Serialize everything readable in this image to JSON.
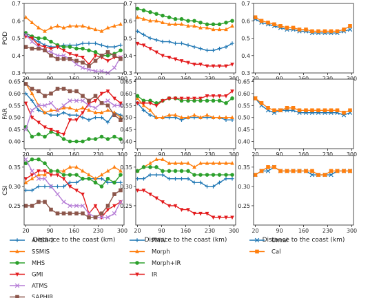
{
  "chart_data": [
    {
      "id": "pod1",
      "type": "line",
      "ylabel": "POD",
      "ylim": [
        0.3,
        0.7
      ],
      "yticks": [
        0.3,
        0.4,
        0.5,
        0.6,
        0.7
      ],
      "ytick_labels": [
        "0.3",
        "0.4",
        "0.5",
        "0.6",
        "0.7"
      ],
      "xlim": [
        15,
        305
      ],
      "series": [
        {
          "name": "AMSR-2",
          "values": [
            0.52,
            0.5,
            0.48,
            0.46,
            0.45,
            0.45,
            0.46,
            0.46,
            0.46,
            0.47,
            0.47,
            0.47,
            0.46,
            0.45,
            0.45,
            0.46
          ]
        },
        {
          "name": "SSMIS",
          "values": [
            0.62,
            0.59,
            0.56,
            0.54,
            0.56,
            0.57,
            0.56,
            0.57,
            0.57,
            0.57,
            0.56,
            0.55,
            0.54,
            0.56,
            0.57,
            0.58
          ]
        },
        {
          "name": "MHS",
          "values": [
            0.53,
            0.51,
            0.5,
            0.5,
            0.48,
            0.46,
            0.45,
            0.45,
            0.44,
            0.44,
            0.43,
            0.42,
            0.4,
            0.4,
            0.41,
            0.43
          ]
        },
        {
          "name": "GMI",
          "values": [
            0.51,
            0.5,
            0.46,
            0.45,
            0.44,
            0.45,
            0.43,
            0.41,
            0.4,
            0.39,
            0.35,
            0.4,
            0.39,
            0.37,
            0.39,
            0.39
          ]
        },
        {
          "name": "ATMS",
          "values": [
            0.52,
            0.48,
            0.45,
            0.43,
            0.42,
            0.4,
            0.4,
            0.38,
            0.35,
            0.33,
            0.32,
            0.31,
            0.31,
            0.3,
            0.33,
            0.39
          ]
        },
        {
          "name": "SAPHIR",
          "values": [
            0.45,
            0.44,
            0.44,
            0.43,
            0.4,
            0.38,
            0.38,
            0.38,
            0.37,
            0.36,
            0.34,
            0.37,
            0.4,
            0.42,
            0.4,
            0.38
          ]
        }
      ]
    },
    {
      "id": "pod2",
      "type": "line",
      "ylim": [
        0.3,
        0.7
      ],
      "yticks": [
        0.3,
        0.4,
        0.5,
        0.6,
        0.7
      ],
      "ytick_labels": [
        "0.3",
        "0.4",
        "0.5",
        "0.6",
        "0.7"
      ],
      "xlim": [
        15,
        305
      ],
      "series": [
        {
          "name": "PMW",
          "values": [
            0.54,
            0.52,
            0.5,
            0.49,
            0.48,
            0.48,
            0.47,
            0.47,
            0.46,
            0.45,
            0.44,
            0.43,
            0.43,
            0.44,
            0.45,
            0.47
          ]
        },
        {
          "name": "Morph",
          "values": [
            0.62,
            0.61,
            0.6,
            0.6,
            0.59,
            0.58,
            0.58,
            0.58,
            0.57,
            0.57,
            0.56,
            0.56,
            0.55,
            0.55,
            0.55,
            0.57
          ]
        },
        {
          "name": "Morph+IR",
          "values": [
            0.67,
            0.66,
            0.65,
            0.64,
            0.63,
            0.62,
            0.61,
            0.61,
            0.6,
            0.6,
            0.59,
            0.58,
            0.58,
            0.58,
            0.59,
            0.6
          ]
        },
        {
          "name": "IR",
          "values": [
            0.47,
            0.46,
            0.44,
            0.42,
            0.4,
            0.39,
            0.38,
            0.37,
            0.36,
            0.35,
            0.35,
            0.34,
            0.34,
            0.34,
            0.34,
            0.35
          ]
        }
      ]
    },
    {
      "id": "pod3",
      "type": "line",
      "ylim": [
        0.3,
        0.7
      ],
      "yticks": [
        0.3,
        0.4,
        0.5,
        0.6,
        0.7
      ],
      "ytick_labels": [
        "0.3",
        "0.4",
        "0.5",
        "0.6",
        "0.7"
      ],
      "xlim": [
        15,
        305
      ],
      "series": [
        {
          "name": "Uncal",
          "values": [
            0.61,
            0.59,
            0.58,
            0.57,
            0.56,
            0.55,
            0.55,
            0.54,
            0.54,
            0.53,
            0.53,
            0.53,
            0.53,
            0.53,
            0.54,
            0.55
          ]
        },
        {
          "name": "Cal",
          "values": [
            0.62,
            0.6,
            0.59,
            0.58,
            0.57,
            0.56,
            0.56,
            0.55,
            0.55,
            0.54,
            0.54,
            0.54,
            0.54,
            0.54,
            0.55,
            0.57
          ]
        }
      ]
    },
    {
      "id": "far1",
      "type": "line",
      "ylabel": "FAR",
      "ylim": [
        0.37,
        0.66
      ],
      "yticks": [
        0.4,
        0.45,
        0.5,
        0.55,
        0.6,
        0.65
      ],
      "ytick_labels": [
        "0.40",
        "0.45",
        "0.50",
        "0.55",
        "0.60",
        "0.65"
      ],
      "xlim": [
        15,
        305
      ],
      "series": [
        {
          "name": "AMSR-2",
          "values": [
            0.6,
            0.57,
            0.53,
            0.52,
            0.51,
            0.51,
            0.52,
            0.51,
            0.51,
            0.5,
            0.49,
            0.5,
            0.5,
            0.48,
            0.52,
            0.51
          ]
        },
        {
          "name": "SSMIS",
          "values": [
            0.64,
            0.6,
            0.55,
            0.52,
            0.53,
            0.53,
            0.54,
            0.54,
            0.53,
            0.54,
            0.53,
            0.52,
            0.52,
            0.53,
            0.52,
            0.5
          ]
        },
        {
          "name": "MHS",
          "values": [
            0.46,
            0.42,
            0.43,
            0.42,
            0.44,
            0.43,
            0.41,
            0.4,
            0.4,
            0.4,
            0.41,
            0.41,
            0.42,
            0.41,
            0.42,
            0.41
          ]
        },
        {
          "name": "GMI",
          "values": [
            0.56,
            0.5,
            0.48,
            0.46,
            0.45,
            0.44,
            0.43,
            0.49,
            0.49,
            0.52,
            0.56,
            0.57,
            0.6,
            0.61,
            0.58,
            0.56
          ]
        },
        {
          "name": "ATMS",
          "values": [
            0.45,
            0.53,
            0.55,
            0.55,
            0.56,
            0.53,
            0.55,
            0.57,
            0.57,
            0.57,
            0.55,
            0.54,
            0.56,
            0.57,
            0.55,
            0.55
          ]
        },
        {
          "name": "SAPHIR",
          "values": [
            0.64,
            0.62,
            0.61,
            0.59,
            0.6,
            0.62,
            0.62,
            0.61,
            0.61,
            0.59,
            0.57,
            0.59,
            0.56,
            0.55,
            0.51,
            0.49
          ]
        }
      ]
    },
    {
      "id": "far2",
      "type": "line",
      "ylim": [
        0.37,
        0.66
      ],
      "yticks": [
        0.4,
        0.45,
        0.5,
        0.55,
        0.6,
        0.65
      ],
      "ytick_labels": [
        "0.40",
        "0.45",
        "0.50",
        "0.55",
        "0.60",
        "0.65"
      ],
      "xlim": [
        15,
        305
      ],
      "series": [
        {
          "name": "PMW",
          "values": [
            0.56,
            0.53,
            0.51,
            0.5,
            0.5,
            0.5,
            0.5,
            0.49,
            0.5,
            0.5,
            0.5,
            0.5,
            0.5,
            0.5,
            0.49,
            0.49
          ]
        },
        {
          "name": "Morph",
          "values": [
            0.58,
            0.55,
            0.53,
            0.5,
            0.5,
            0.51,
            0.51,
            0.5,
            0.5,
            0.51,
            0.5,
            0.51,
            0.5,
            0.5,
            0.5,
            0.5
          ]
        },
        {
          "name": "Morph+IR",
          "values": [
            0.59,
            0.57,
            0.57,
            0.56,
            0.57,
            0.58,
            0.58,
            0.57,
            0.57,
            0.57,
            0.57,
            0.57,
            0.57,
            0.57,
            0.56,
            0.58
          ]
        },
        {
          "name": "IR",
          "values": [
            0.56,
            0.56,
            0.56,
            0.55,
            0.57,
            0.58,
            0.58,
            0.58,
            0.58,
            0.58,
            0.58,
            0.59,
            0.59,
            0.59,
            0.59,
            0.61
          ]
        }
      ]
    },
    {
      "id": "far3",
      "type": "line",
      "ylim": [
        0.37,
        0.66
      ],
      "yticks": [
        0.4,
        0.45,
        0.5,
        0.55,
        0.6,
        0.65
      ],
      "ytick_labels": [
        "0.40",
        "0.45",
        "0.50",
        "0.55",
        "0.60",
        "0.65"
      ],
      "xlim": [
        15,
        305
      ],
      "series": [
        {
          "name": "Uncal",
          "values": [
            0.58,
            0.55,
            0.53,
            0.52,
            0.53,
            0.53,
            0.53,
            0.52,
            0.52,
            0.52,
            0.52,
            0.52,
            0.52,
            0.52,
            0.51,
            0.52
          ]
        },
        {
          "name": "Cal",
          "values": [
            0.58,
            0.56,
            0.54,
            0.53,
            0.53,
            0.54,
            0.54,
            0.53,
            0.53,
            0.53,
            0.53,
            0.53,
            0.53,
            0.53,
            0.52,
            0.53
          ]
        }
      ]
    },
    {
      "id": "csi1",
      "type": "line",
      "ylabel": "CSI",
      "ylim": [
        0.2,
        0.38
      ],
      "yticks": [
        0.25,
        0.3,
        0.35
      ],
      "ytick_labels": [
        "0.25",
        "0.30",
        "0.35"
      ],
      "xlabel": "Distance to the coast (km)",
      "xlim": [
        15,
        305
      ],
      "series": [
        {
          "name": "AMSR-2",
          "values": [
            0.29,
            0.29,
            0.3,
            0.3,
            0.3,
            0.3,
            0.3,
            0.31,
            0.31,
            0.32,
            0.32,
            0.32,
            0.32,
            0.31,
            0.31,
            0.31
          ]
        },
        {
          "name": "SSMIS",
          "values": [
            0.31,
            0.32,
            0.33,
            0.33,
            0.34,
            0.34,
            0.34,
            0.35,
            0.35,
            0.34,
            0.33,
            0.32,
            0.33,
            0.34,
            0.35,
            0.34
          ]
        },
        {
          "name": "MHS",
          "values": [
            0.36,
            0.37,
            0.37,
            0.36,
            0.34,
            0.34,
            0.33,
            0.33,
            0.33,
            0.32,
            0.32,
            0.31,
            0.3,
            0.32,
            0.31,
            0.33
          ]
        },
        {
          "name": "GMI",
          "values": [
            0.32,
            0.33,
            0.34,
            0.34,
            0.33,
            0.33,
            0.32,
            0.3,
            0.29,
            0.28,
            0.23,
            0.25,
            0.22,
            0.24,
            0.25,
            0.26
          ]
        },
        {
          "name": "ATMS",
          "values": [
            0.37,
            0.34,
            0.32,
            0.32,
            0.3,
            0.28,
            0.26,
            0.25,
            0.25,
            0.25,
            0.23,
            0.22,
            0.22,
            0.22,
            0.23,
            0.26
          ]
        },
        {
          "name": "SAPHIR",
          "values": [
            0.25,
            0.25,
            0.26,
            0.26,
            0.24,
            0.23,
            0.23,
            0.23,
            0.23,
            0.23,
            0.22,
            0.22,
            0.23,
            0.25,
            0.28,
            0.29
          ]
        }
      ]
    },
    {
      "id": "csi2",
      "type": "line",
      "ylim": [
        0.2,
        0.38
      ],
      "yticks": [
        0.25,
        0.3,
        0.35
      ],
      "ytick_labels": [
        "0.25",
        "0.30",
        "0.35"
      ],
      "xlabel": "Distance to the coast (km)",
      "xlim": [
        15,
        305
      ],
      "series": [
        {
          "name": "PMW",
          "values": [
            0.32,
            0.32,
            0.33,
            0.33,
            0.33,
            0.32,
            0.32,
            0.32,
            0.32,
            0.31,
            0.31,
            0.3,
            0.3,
            0.31,
            0.32,
            0.32
          ]
        },
        {
          "name": "Morph",
          "values": [
            0.34,
            0.35,
            0.36,
            0.37,
            0.37,
            0.36,
            0.36,
            0.36,
            0.36,
            0.35,
            0.36,
            0.36,
            0.36,
            0.36,
            0.36,
            0.36
          ]
        },
        {
          "name": "Morph+IR",
          "values": [
            0.34,
            0.35,
            0.35,
            0.35,
            0.34,
            0.34,
            0.34,
            0.34,
            0.34,
            0.33,
            0.33,
            0.33,
            0.33,
            0.33,
            0.33,
            0.33
          ]
        },
        {
          "name": "IR",
          "values": [
            0.29,
            0.29,
            0.28,
            0.27,
            0.26,
            0.25,
            0.25,
            0.24,
            0.24,
            0.23,
            0.23,
            0.23,
            0.22,
            0.22,
            0.22,
            0.22
          ]
        }
      ]
    },
    {
      "id": "csi3",
      "type": "line",
      "ylim": [
        0.2,
        0.38
      ],
      "yticks": [
        0.25,
        0.3,
        0.35
      ],
      "ytick_labels": [
        "0.25",
        "0.30",
        "0.35"
      ],
      "xlabel": "Distance to the coast (km)",
      "xlim": [
        15,
        305
      ],
      "series": [
        {
          "name": "Uncal",
          "values": [
            0.33,
            0.34,
            0.34,
            0.35,
            0.34,
            0.34,
            0.34,
            0.34,
            0.34,
            0.33,
            0.33,
            0.33,
            0.33,
            0.34,
            0.34,
            0.34
          ]
        },
        {
          "name": "Cal",
          "values": [
            0.33,
            0.34,
            0.35,
            0.35,
            0.34,
            0.34,
            0.34,
            0.34,
            0.34,
            0.34,
            0.33,
            0.33,
            0.34,
            0.34,
            0.34,
            0.34
          ]
        }
      ]
    }
  ],
  "shared": {
    "x": [
      20,
      38,
      57,
      75,
      93,
      112,
      130,
      148,
      167,
      185,
      203,
      222,
      240,
      258,
      277,
      295
    ],
    "xticks": [
      20,
      90,
      160,
      230,
      300
    ],
    "xtick_labels": [
      "20",
      "90",
      "160",
      "230",
      "300"
    ],
    "xlabel": "Distance to the coast (km)",
    "styles": {
      "AMSR-2": {
        "color": "#1f77b4",
        "marker": "plus"
      },
      "SSMIS": {
        "color": "#ff7f0e",
        "marker": "triangle"
      },
      "MHS": {
        "color": "#2ca02c",
        "marker": "circle"
      },
      "GMI": {
        "color": "#e31a1c",
        "marker": "triangle-down"
      },
      "ATMS": {
        "color": "#b57cd6",
        "marker": "x"
      },
      "SAPHIR": {
        "color": "#8c564b",
        "marker": "square"
      },
      "PMW": {
        "color": "#1f77b4",
        "marker": "plus"
      },
      "Morph": {
        "color": "#ff7f0e",
        "marker": "triangle"
      },
      "Morph+IR": {
        "color": "#2ca02c",
        "marker": "circle"
      },
      "IR": {
        "color": "#e31a1c",
        "marker": "triangle-down"
      },
      "Uncal": {
        "color": "#1f77b4",
        "marker": "x"
      },
      "Cal": {
        "color": "#ff7f0e",
        "marker": "square"
      }
    }
  },
  "legends": [
    [
      "AMSR-2",
      "SSMIS",
      "MHS",
      "GMI",
      "ATMS",
      "SAPHIR"
    ],
    [
      "PMW",
      "Morph",
      "Morph+IR",
      "IR"
    ],
    [
      "Uncal",
      "Cal"
    ]
  ]
}
